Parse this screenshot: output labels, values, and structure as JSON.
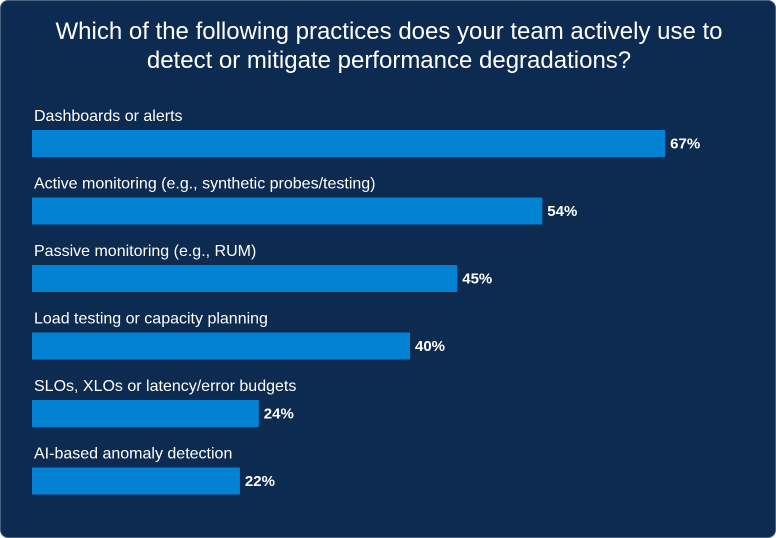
{
  "chart_data": {
    "type": "bar",
    "orientation": "horizontal",
    "title": "Which of the following practices does your team actively use to detect or mitigate performance degradations?",
    "categories": [
      "Dashboards or alerts",
      "Active monitoring (e.g., synthetic probes/testing)",
      "Passive monitoring (e.g., RUM)",
      "Load testing or capacity planning",
      "SLOs, XLOs or latency/error budgets",
      "AI-based anomaly detection"
    ],
    "values": [
      67,
      54,
      45,
      40,
      24,
      22
    ],
    "value_labels": [
      "67%",
      "54%",
      "45%",
      "40%",
      "24%",
      "22%"
    ],
    "unit": "%",
    "xlim": [
      0,
      100
    ],
    "grid": false,
    "legend": "none",
    "colors": {
      "background": "#0d2a50",
      "bar": "#0382d3",
      "text": "#ffffff"
    }
  }
}
